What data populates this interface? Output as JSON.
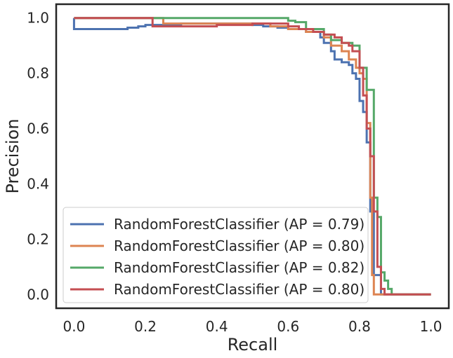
{
  "chart_data": {
    "type": "line",
    "step": true,
    "title": "",
    "xlabel": "Recall",
    "ylabel": "Precision",
    "xlim": [
      -0.05,
      1.05
    ],
    "ylim": [
      -0.05,
      1.05
    ],
    "xticks": [
      0.0,
      0.2,
      0.4,
      0.6,
      0.8,
      1.0
    ],
    "xtick_labels": [
      "0.0",
      "0.2",
      "0.4",
      "0.6",
      "0.8",
      "1.0"
    ],
    "yticks": [
      0.0,
      0.2,
      0.4,
      0.6,
      0.8,
      1.0
    ],
    "ytick_labels": [
      "0.0",
      "0.2",
      "0.4",
      "0.6",
      "0.8",
      "1.0"
    ],
    "grid": false,
    "legend_position": "lower-left",
    "series": [
      {
        "name": "RandomForestClassifier (AP = 0.79)",
        "color": "#4c72b0",
        "x": [
          0.0,
          0.0,
          0.01,
          0.13,
          0.15,
          0.18,
          0.2,
          0.23,
          0.3,
          0.43,
          0.5,
          0.53,
          0.57,
          0.6,
          0.65,
          0.69,
          0.7,
          0.72,
          0.73,
          0.75,
          0.77,
          0.78,
          0.79,
          0.8,
          0.81,
          0.82,
          0.83,
          0.84,
          0.86,
          1.0
        ],
        "y": [
          1.0,
          0.96,
          0.96,
          0.96,
          0.965,
          0.97,
          0.975,
          0.975,
          0.98,
          0.98,
          0.975,
          0.97,
          0.965,
          0.96,
          0.95,
          0.93,
          0.91,
          0.88,
          0.85,
          0.84,
          0.83,
          0.8,
          0.78,
          0.7,
          0.66,
          0.55,
          0.3,
          0.07,
          0.0,
          0.0
        ]
      },
      {
        "name": "RandomForestClassifier (AP = 0.80)",
        "color": "#dd8452",
        "x": [
          0.0,
          0.24,
          0.25,
          0.4,
          0.55,
          0.6,
          0.65,
          0.7,
          0.72,
          0.75,
          0.77,
          0.79,
          0.8,
          0.81,
          0.82,
          0.83,
          0.835,
          0.84,
          1.0
        ],
        "y": [
          1.0,
          1.0,
          0.98,
          0.98,
          0.97,
          0.96,
          0.95,
          0.93,
          0.9,
          0.88,
          0.85,
          0.82,
          0.8,
          0.78,
          0.62,
          0.35,
          0.07,
          0.0,
          0.0
        ]
      },
      {
        "name": "RandomForestClassifier (AP = 0.82)",
        "color": "#55a868",
        "x": [
          0.0,
          0.57,
          0.6,
          0.62,
          0.65,
          0.7,
          0.72,
          0.75,
          0.78,
          0.8,
          0.82,
          0.84,
          0.85,
          0.86,
          0.87,
          0.88,
          0.89,
          1.0
        ],
        "y": [
          1.0,
          1.0,
          0.99,
          0.985,
          0.96,
          0.94,
          0.92,
          0.91,
          0.9,
          0.82,
          0.74,
          0.35,
          0.28,
          0.08,
          0.05,
          0.02,
          0.0,
          0.0
        ]
      },
      {
        "name": "RandomForestClassifier (AP = 0.80)",
        "color": "#c44e52",
        "x": [
          0.0,
          0.22,
          0.22,
          0.4,
          0.5,
          0.6,
          0.63,
          0.67,
          0.7,
          0.73,
          0.75,
          0.77,
          0.78,
          0.8,
          0.81,
          0.82,
          0.83,
          0.84,
          0.85,
          0.86,
          0.87,
          1.0
        ],
        "y": [
          1.0,
          1.0,
          0.97,
          0.975,
          0.98,
          0.97,
          0.96,
          0.95,
          0.94,
          0.93,
          0.91,
          0.9,
          0.88,
          0.82,
          0.72,
          0.6,
          0.5,
          0.3,
          0.1,
          0.02,
          0.0,
          0.0
        ]
      }
    ]
  }
}
